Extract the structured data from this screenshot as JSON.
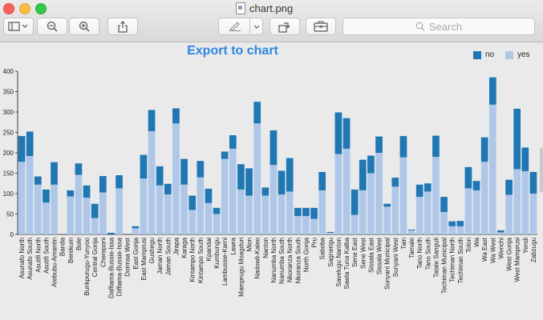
{
  "window": {
    "title": "chart.png"
  },
  "toolbar": {
    "search_placeholder": "Search"
  },
  "chart_data": {
    "type": "bar",
    "stacked": true,
    "title": "Export to chart",
    "xlabel": "",
    "ylabel": "",
    "ylim": [
      0,
      400
    ],
    "yticks": [
      0,
      50,
      100,
      150,
      200,
      250,
      300,
      350,
      400
    ],
    "legend_position": "top-right",
    "grid": false,
    "categories": [
      "Asunafo North",
      "Asunafo South",
      "Asutifi North",
      "Asutifi South",
      "Atebubu-Amantin",
      "Banda",
      "Berekum",
      "Bole",
      "Bunkpurugu-Yunyoo",
      "Central Gonja",
      "Chereponi",
      "Daffiama-Bussie-Issa",
      "Diffiama-Bussie-Issa",
      "Dormaa West",
      "East Gonja",
      "East Mamprusi",
      "Gushegu",
      "Jaman North",
      "Jaman South",
      "Jirapa",
      "Karaga",
      "Kintampo North",
      "Kintampo South",
      "Kpandai",
      "Kumbungu",
      "Lambussie-Karni",
      "Lawra",
      "Mamprugu Moagduri",
      "Mion",
      "Nadowli-Kaleo",
      "Nanton",
      "Nanumba North",
      "Nanumba South",
      "Nkoranza North",
      "Nkoranza South",
      "North Gonja",
      "Pru",
      "Saboba",
      "Sagnerigu",
      "Savelugu Nanton",
      "Sawla Tuna Kalba",
      "Sene East",
      "Sene West",
      "Sissala East",
      "Sissala West",
      "Sunyani Municipal",
      "Sunyani West",
      "Tain",
      "Tamale",
      "Tano North",
      "Tano South",
      "Tatale Sanguli",
      "Techiman Municipal",
      "Techiman North",
      "Techiman South",
      "Tolon",
      "Wa",
      "Wa East",
      "Wa West",
      "Wenchi",
      "West Gonja",
      "West Mamprusi",
      "Yendi",
      "Zabzugu"
    ],
    "series": [
      {
        "name": "yes",
        "color": "#aec7e8",
        "values": [
          178,
          192,
          122,
          78,
          122,
          0,
          93,
          146,
          90,
          40,
          103,
          0,
          113,
          0,
          15,
          137,
          253,
          120,
          98,
          272,
          122,
          60,
          140,
          77,
          50,
          185,
          210,
          110,
          95,
          272,
          95,
          170,
          98,
          105,
          45,
          45,
          38,
          108,
          4,
          197,
          210,
          48,
          108,
          150,
          200,
          68,
          117,
          189,
          10,
          92,
          105,
          190,
          55,
          20,
          20,
          113,
          108,
          178,
          318,
          5,
          97,
          160,
          155,
          100
        ]
      },
      {
        "name": "no",
        "color": "#1f77b4",
        "values": [
          63,
          60,
          20,
          32,
          55,
          0,
          15,
          28,
          30,
          35,
          40,
          4,
          32,
          0,
          5,
          58,
          52,
          47,
          26,
          37,
          63,
          35,
          40,
          35,
          15,
          18,
          33,
          62,
          67,
          53,
          20,
          85,
          58,
          82,
          20,
          20,
          27,
          45,
          2,
          102,
          75,
          62,
          75,
          43,
          40,
          7,
          22,
          52,
          2,
          30,
          20,
          52,
          37,
          12,
          13,
          52,
          23,
          60,
          67,
          5,
          37,
          148,
          58,
          53
        ]
      }
    ]
  }
}
